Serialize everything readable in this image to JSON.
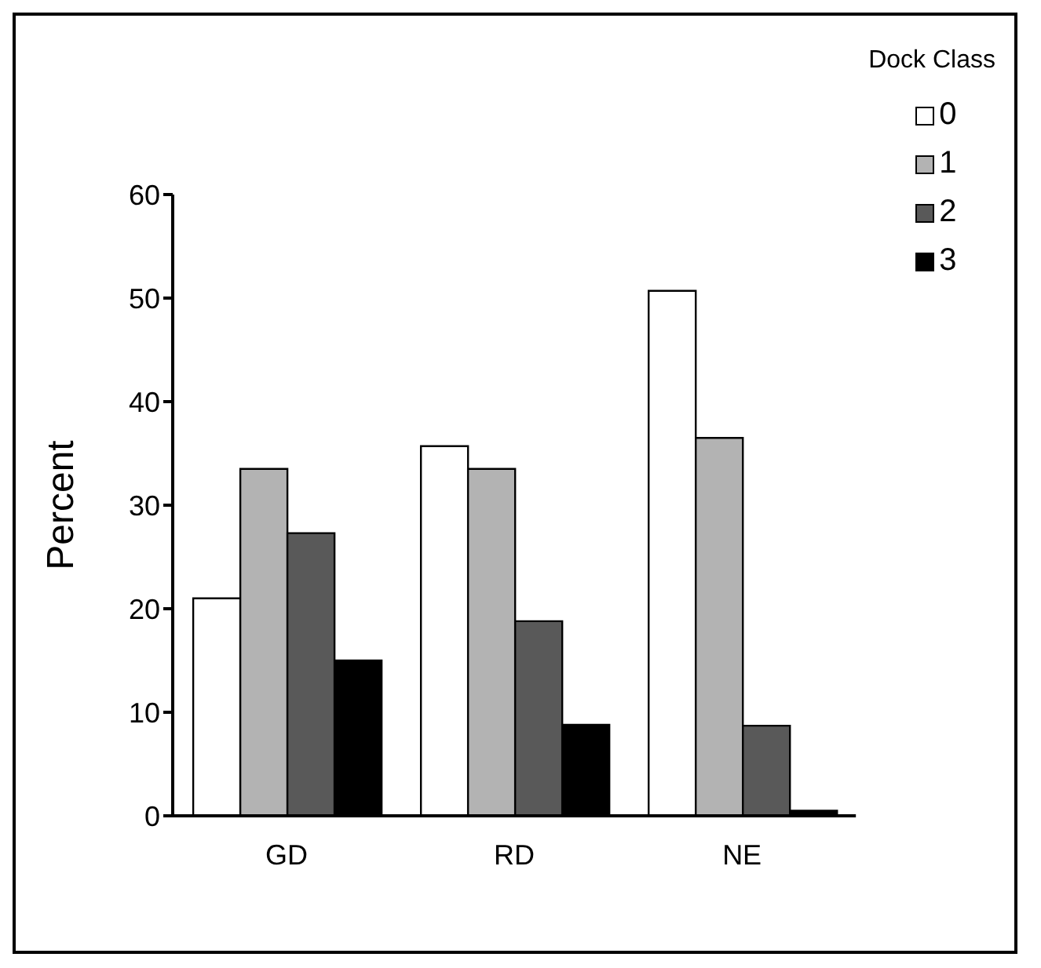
{
  "chart_data": {
    "type": "bar",
    "ylabel": "Percent",
    "legend_title": "Dock Class",
    "categories": [
      "GD",
      "RD",
      "NE"
    ],
    "series": [
      {
        "name": "0",
        "color": "#ffffff",
        "values": [
          21,
          35.7,
          50.7
        ]
      },
      {
        "name": "1",
        "color": "#b3b3b3",
        "values": [
          33.5,
          33.5,
          36.5
        ]
      },
      {
        "name": "2",
        "color": "#595959",
        "values": [
          27.3,
          18.8,
          8.7
        ]
      },
      {
        "name": "3",
        "color": "#000000",
        "values": [
          15,
          8.8,
          0.5
        ]
      }
    ],
    "ylim": [
      0,
      60
    ],
    "yticks": [
      0,
      10,
      20,
      30,
      40,
      50,
      60
    ],
    "grid": false,
    "legend": "top right"
  }
}
